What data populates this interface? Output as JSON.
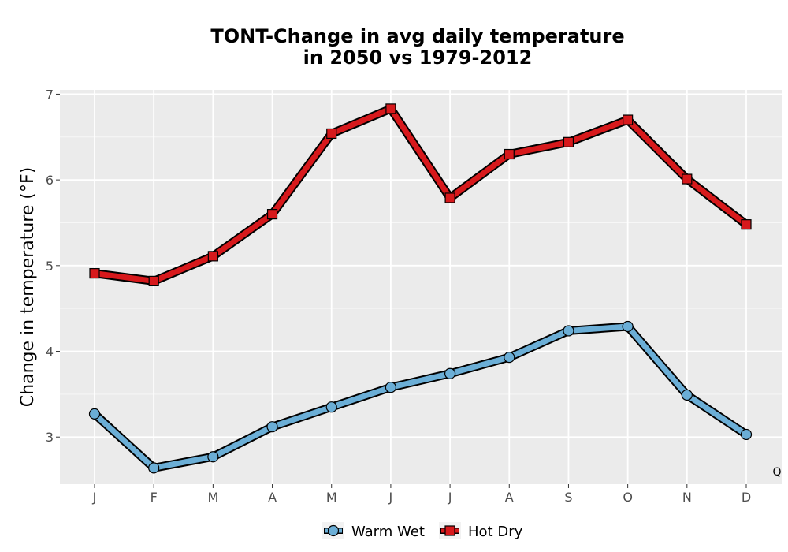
{
  "chart_data": {
    "type": "line",
    "title_lines": [
      "TONT-Change in avg daily temperature",
      "in 2050 vs 1979-2012"
    ],
    "xlabel": "",
    "ylabel": "Change in temperature (°F)",
    "categories": [
      "J",
      "F",
      "M",
      "A",
      "M",
      "J",
      "J",
      "A",
      "S",
      "O",
      "N",
      "D"
    ],
    "ylim": [
      2.45,
      7.05
    ],
    "yticks": [
      3,
      4,
      5,
      6,
      7
    ],
    "grid": true,
    "legend_position": "bottom",
    "corner_note": "Q",
    "series": [
      {
        "name": "Warm Wet",
        "marker": "circle",
        "color": "#6baed6",
        "values": [
          3.27,
          2.64,
          2.77,
          3.12,
          3.35,
          3.58,
          3.74,
          3.93,
          4.24,
          4.29,
          3.49,
          3.03
        ]
      },
      {
        "name": "Hot Dry",
        "marker": "square",
        "color": "#d7191c",
        "values": [
          4.91,
          4.82,
          5.11,
          5.6,
          6.54,
          6.83,
          5.79,
          6.3,
          6.44,
          6.7,
          6.01,
          5.48
        ]
      }
    ]
  }
}
